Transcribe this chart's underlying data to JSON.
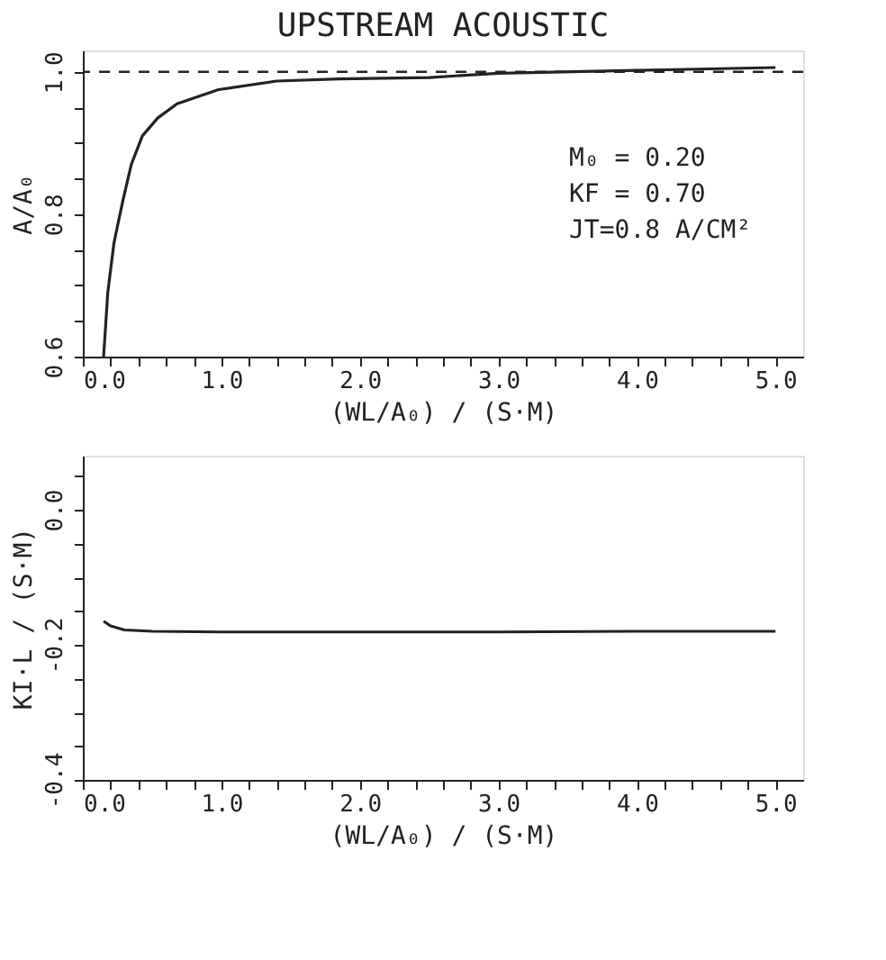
{
  "chart_data": [
    {
      "type": "line",
      "title": "UPSTREAM ACOUSTIC",
      "xlabel": "(WL/A₀) / (S·M)",
      "ylabel": "A/A₀",
      "x": [
        0.15,
        0.18,
        0.225,
        0.29,
        0.35,
        0.43,
        0.54,
        0.68,
        0.98,
        1.4,
        1.85,
        2.5,
        3.0,
        4.0,
        5.0
      ],
      "series": [
        {
          "color": "#222222",
          "values": [
            0.6,
            0.69,
            0.76,
            0.82,
            0.87,
            0.91,
            0.935,
            0.955,
            0.975,
            0.987,
            0.99,
            0.992,
            0.998,
            1.002,
            1.006
          ]
        }
      ],
      "xlim": [
        0,
        5.2
      ],
      "ylim": [
        0.6,
        1.03
      ],
      "xticks": [
        {
          "value": 0,
          "label": "0.0"
        },
        {
          "value": 0.2,
          "label": null
        },
        {
          "value": 0.4,
          "label": null
        },
        {
          "value": 0.6,
          "label": null
        },
        {
          "value": 0.8,
          "label": null
        },
        {
          "value": 1,
          "label": "1.0"
        },
        {
          "value": 1.2,
          "label": null
        },
        {
          "value": 1.4,
          "label": null
        },
        {
          "value": 1.6,
          "label": null
        },
        {
          "value": 1.8,
          "label": null
        },
        {
          "value": 2,
          "label": "2.0"
        },
        {
          "value": 2.2,
          "label": null
        },
        {
          "value": 2.4,
          "label": null
        },
        {
          "value": 2.6,
          "label": null
        },
        {
          "value": 2.8,
          "label": null
        },
        {
          "value": 3,
          "label": "3.0"
        },
        {
          "value": 3.2,
          "label": null
        },
        {
          "value": 3.4,
          "label": null
        },
        {
          "value": 3.6,
          "label": null
        },
        {
          "value": 3.8,
          "label": null
        },
        {
          "value": 4,
          "label": "4.0"
        },
        {
          "value": 4.2,
          "label": null
        },
        {
          "value": 4.4,
          "label": null
        },
        {
          "value": 4.6,
          "label": null
        },
        {
          "value": 4.8,
          "label": null
        },
        {
          "value": 5,
          "label": "5.0"
        }
      ],
      "yticks": [
        0.6,
        {
          "value": 0.65,
          "label": null
        },
        {
          "value": 0.7,
          "label": null
        },
        {
          "value": 0.75,
          "label": null
        },
        0.8,
        {
          "value": 0.85,
          "label": null
        },
        {
          "value": 0.9,
          "label": null
        },
        {
          "value": 0.95,
          "label": null
        },
        {
          "value": 1,
          "label": "1.0"
        }
      ],
      "ref_lines": [
        {
          "axis": "y",
          "value": 1,
          "line_style": "dashed",
          "color": "#222222"
        }
      ],
      "annotations": [
        "M₀ = 0.20",
        "KF = 0.70",
        "JT=0.8 A/CM²"
      ],
      "grid": false,
      "marker": "none",
      "line_style": "solid"
    },
    {
      "type": "line",
      "xlabel": "(WL/A₀) / (S·M)",
      "ylabel": "KI·L / (S·M)",
      "x": [
        0.15,
        0.2,
        0.3,
        0.5,
        1.0,
        2.0,
        3.0,
        4.0,
        5.0
      ],
      "series": [
        {
          "color": "#222222",
          "values": [
            -0.165,
            -0.172,
            -0.178,
            -0.18,
            -0.181,
            -0.181,
            -0.181,
            -0.18,
            -0.18
          ]
        }
      ],
      "xlim": [
        0,
        5.2
      ],
      "ylim": [
        -0.4,
        0.08
      ],
      "xticks": [
        {
          "value": 0,
          "label": "0.0"
        },
        {
          "value": 0.2,
          "label": null
        },
        {
          "value": 0.4,
          "label": null
        },
        {
          "value": 0.6,
          "label": null
        },
        {
          "value": 0.8,
          "label": null
        },
        {
          "value": 1,
          "label": "1.0"
        },
        {
          "value": 1.2,
          "label": null
        },
        {
          "value": 1.4,
          "label": null
        },
        {
          "value": 1.6,
          "label": null
        },
        {
          "value": 1.8,
          "label": null
        },
        {
          "value": 2,
          "label": "2.0"
        },
        {
          "value": 2.2,
          "label": null
        },
        {
          "value": 2.4,
          "label": null
        },
        {
          "value": 2.6,
          "label": null
        },
        {
          "value": 2.8,
          "label": null
        },
        {
          "value": 3,
          "label": "3.0"
        },
        {
          "value": 3.2,
          "label": null
        },
        {
          "value": 3.4,
          "label": null
        },
        {
          "value": 3.6,
          "label": null
        },
        {
          "value": 3.8,
          "label": null
        },
        {
          "value": 4,
          "label": "4.0"
        },
        {
          "value": 4.2,
          "label": null
        },
        {
          "value": 4.4,
          "label": null
        },
        {
          "value": 4.6,
          "label": null
        },
        {
          "value": 4.8,
          "label": null
        },
        {
          "value": 5,
          "label": "5.0"
        }
      ],
      "yticks": [
        {
          "value": -0.4,
          "label": "-0.4"
        },
        {
          "value": -0.35,
          "label": null
        },
        {
          "value": -0.3,
          "label": null
        },
        {
          "value": -0.25,
          "label": null
        },
        {
          "value": -0.2,
          "label": "-0.2"
        },
        {
          "value": -0.15,
          "label": null
        },
        {
          "value": -0.1,
          "label": null
        },
        {
          "value": -0.05,
          "label": null
        },
        {
          "value": 0,
          "label": "0.0"
        },
        {
          "value": 0.05,
          "label": null
        }
      ],
      "grid": false,
      "marker": "none",
      "line_style": "solid"
    }
  ]
}
